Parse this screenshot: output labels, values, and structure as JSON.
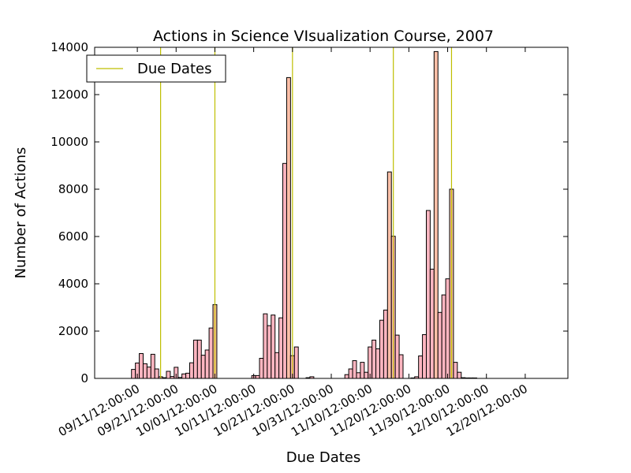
{
  "chart_data": {
    "type": "bar",
    "title": "Actions in Science VIsualization Course, 2007",
    "xlabel": "Due Dates",
    "ylabel": "Number of Actions",
    "ylim": [
      0,
      14000
    ],
    "yticks": [
      0,
      2000,
      4000,
      6000,
      8000,
      10000,
      12000,
      14000
    ],
    "xticks": [
      {
        "date": "2007-09-11",
        "label": "09/11/12:00:00"
      },
      {
        "date": "2007-09-21",
        "label": "09/21/12:00:00"
      },
      {
        "date": "2007-10-01",
        "label": "10/01/12:00:00"
      },
      {
        "date": "2007-10-11",
        "label": "10/11/12:00:00"
      },
      {
        "date": "2007-10-21",
        "label": "10/21/12:00:00"
      },
      {
        "date": "2007-10-31",
        "label": "10/31/12:00:00"
      },
      {
        "date": "2007-11-10",
        "label": "11/10/12:00:00"
      },
      {
        "date": "2007-11-20",
        "label": "11/20/12:00:00"
      },
      {
        "date": "2007-11-30",
        "label": "11/30/12:00:00"
      },
      {
        "date": "2007-12-10",
        "label": "12/10/12:00:00"
      },
      {
        "date": "2007-12-20",
        "label": "12/20/12:00:00"
      }
    ],
    "xlim": [
      "2007-08-31",
      "2007-12-31"
    ],
    "grid": false,
    "legend": {
      "position": "top-left",
      "entries": [
        "Due Dates"
      ]
    },
    "colors": {
      "bar": "#ffb6c1",
      "bar_highlight": "#ffc0a8",
      "due_line": "#bfbf00"
    },
    "series": [
      {
        "values": [
          {
            "x": "2007-09-10",
            "y": 380
          },
          {
            "x": "2007-09-11",
            "y": 650
          },
          {
            "x": "2007-09-12",
            "y": 1050
          },
          {
            "x": "2007-09-13",
            "y": 620
          },
          {
            "x": "2007-09-14",
            "y": 480
          },
          {
            "x": "2007-09-15",
            "y": 1020
          },
          {
            "x": "2007-09-16",
            "y": 400
          },
          {
            "x": "2007-09-17",
            "y": 70
          },
          {
            "x": "2007-09-18",
            "y": 30
          },
          {
            "x": "2007-09-19",
            "y": 300
          },
          {
            "x": "2007-09-20",
            "y": 80
          },
          {
            "x": "2007-09-21",
            "y": 470
          },
          {
            "x": "2007-09-22",
            "y": 40
          },
          {
            "x": "2007-09-23",
            "y": 190
          },
          {
            "x": "2007-09-24",
            "y": 220
          },
          {
            "x": "2007-09-25",
            "y": 660
          },
          {
            "x": "2007-09-26",
            "y": 1620
          },
          {
            "x": "2007-09-27",
            "y": 1620
          },
          {
            "x": "2007-09-28",
            "y": 980
          },
          {
            "x": "2007-09-29",
            "y": 1200
          },
          {
            "x": "2007-09-30",
            "y": 2130
          },
          {
            "x": "2007-10-01",
            "y": 3120
          },
          {
            "x": "2007-10-11",
            "y": 120
          },
          {
            "x": "2007-10-12",
            "y": 120
          },
          {
            "x": "2007-10-13",
            "y": 850
          },
          {
            "x": "2007-10-14",
            "y": 2730
          },
          {
            "x": "2007-10-15",
            "y": 2230
          },
          {
            "x": "2007-10-16",
            "y": 2680
          },
          {
            "x": "2007-10-17",
            "y": 1090
          },
          {
            "x": "2007-10-18",
            "y": 2560
          },
          {
            "x": "2007-10-19",
            "y": 9090
          },
          {
            "x": "2007-10-20",
            "y": 12720
          },
          {
            "x": "2007-10-21",
            "y": 960
          },
          {
            "x": "2007-10-22",
            "y": 1330
          },
          {
            "x": "2007-10-25",
            "y": 30
          },
          {
            "x": "2007-10-26",
            "y": 70
          },
          {
            "x": "2007-11-04",
            "y": 160
          },
          {
            "x": "2007-11-05",
            "y": 400
          },
          {
            "x": "2007-11-06",
            "y": 750
          },
          {
            "x": "2007-11-07",
            "y": 240
          },
          {
            "x": "2007-11-08",
            "y": 680
          },
          {
            "x": "2007-11-09",
            "y": 260
          },
          {
            "x": "2007-11-10",
            "y": 1330
          },
          {
            "x": "2007-11-11",
            "y": 1620
          },
          {
            "x": "2007-11-12",
            "y": 1250
          },
          {
            "x": "2007-11-13",
            "y": 2460
          },
          {
            "x": "2007-11-14",
            "y": 2890
          },
          {
            "x": "2007-11-15",
            "y": 8730
          },
          {
            "x": "2007-11-16",
            "y": 6010
          },
          {
            "x": "2007-11-17",
            "y": 1830
          },
          {
            "x": "2007-11-18",
            "y": 1000
          },
          {
            "x": "2007-11-21",
            "y": 20
          },
          {
            "x": "2007-11-22",
            "y": 70
          },
          {
            "x": "2007-11-23",
            "y": 950
          },
          {
            "x": "2007-11-24",
            "y": 1850
          },
          {
            "x": "2007-11-25",
            "y": 7100
          },
          {
            "x": "2007-11-26",
            "y": 4620
          },
          {
            "x": "2007-11-27",
            "y": 13820
          },
          {
            "x": "2007-11-28",
            "y": 2790
          },
          {
            "x": "2007-11-29",
            "y": 3530
          },
          {
            "x": "2007-11-30",
            "y": 4210
          },
          {
            "x": "2007-12-01",
            "y": 8000
          },
          {
            "x": "2007-12-02",
            "y": 680
          },
          {
            "x": "2007-12-03",
            "y": 260
          },
          {
            "x": "2007-12-04",
            "y": 30
          },
          {
            "x": "2007-12-05",
            "y": 20
          },
          {
            "x": "2007-12-06",
            "y": 20
          },
          {
            "x": "2007-12-07",
            "y": 20
          }
        ]
      }
    ],
    "highlighted_bars": [
      "2007-10-01",
      "2007-10-20",
      "2007-11-15",
      "2007-11-27",
      "2007-12-01"
    ],
    "due_dates": [
      "2007-09-17",
      "2007-10-01",
      "2007-10-21",
      "2007-11-16",
      "2007-12-01"
    ]
  }
}
